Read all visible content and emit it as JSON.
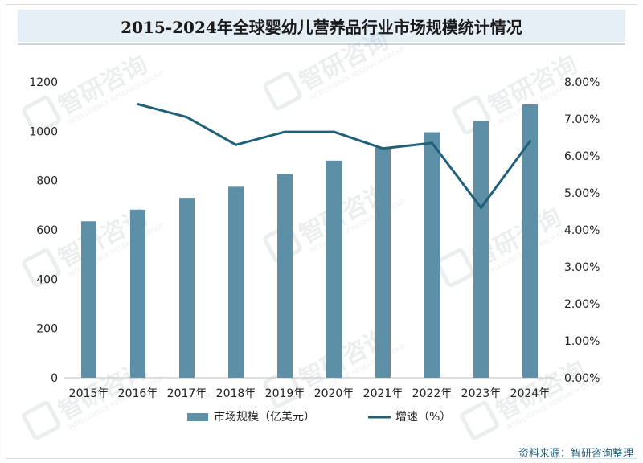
{
  "title": "2015-2024年全球婴幼儿营养品行业市场规模统计情况",
  "source": "资料来源：智研咨询整理",
  "watermark": {
    "text": "智研咨询",
    "subtext": "INTELLIGENCE RESEARCH GROUP"
  },
  "colors": {
    "bar": "#5d8fa6",
    "line": "#1f607a",
    "axis": "#7f7f7f",
    "text": "#222222"
  },
  "chart_data": {
    "type": "bar",
    "categories": [
      "2015年",
      "2016年",
      "2017年",
      "2018年",
      "2019年",
      "2020年",
      "2021年",
      "2022年",
      "2023年",
      "2024年"
    ],
    "series": [
      {
        "name": "市场规模（亿美元）",
        "type": "bar",
        "axis": "left",
        "values": [
          635,
          682,
          730,
          775,
          827,
          881,
          936,
          996,
          1042,
          1109
        ]
      },
      {
        "name": "增速（%）",
        "type": "line",
        "axis": "right",
        "values": [
          null,
          7.4,
          7.05,
          6.3,
          6.65,
          6.65,
          6.2,
          6.35,
          4.6,
          6.4
        ]
      }
    ],
    "left_axis": {
      "min": 0,
      "max": 1200,
      "ticks": [
        "0",
        "200",
        "400",
        "600",
        "800",
        "1000",
        "1200"
      ]
    },
    "right_axis": {
      "min": 0,
      "max": 8,
      "ticks": [
        "0.00%",
        "1.00%",
        "2.00%",
        "3.00%",
        "4.00%",
        "5.00%",
        "6.00%",
        "7.00%",
        "8.00%"
      ]
    },
    "legend": {
      "position": "bottom"
    }
  }
}
